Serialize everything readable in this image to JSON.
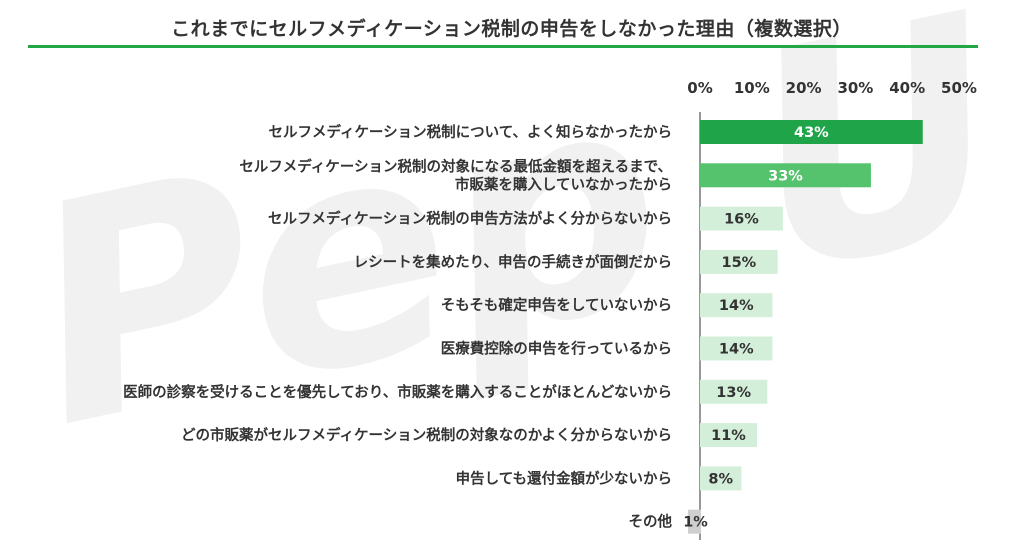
{
  "title": "これまでにセルフメディケーション税制の申告をしなかった理由（複数選択）",
  "watermark_text": "Pep Up.",
  "colors": {
    "accent": "#22a746",
    "bar_dark": "#1fa44a",
    "bar_mid": "#55c26e",
    "bar_light": "#d4efd9",
    "bar_other": "#cfcfcf",
    "label_on_dark": "#ffffff",
    "label_on_light": "#333333"
  },
  "chart_data": {
    "type": "bar",
    "orientation": "horizontal",
    "title": "これまでにセルフメディケーション税制の申告をしなかった理由（複数選択）",
    "xlim": [
      0,
      50
    ],
    "ticks": [
      "0%",
      "10%",
      "20%",
      "30%",
      "40%",
      "50%"
    ],
    "tick_values": [
      0,
      10,
      20,
      30,
      40,
      50
    ],
    "grid": false,
    "categories": [
      [
        "セルフメディケーション税制について、よく知らなかったから"
      ],
      [
        "セルフメディケーション税制の対象になる最低金額を超えるまで、",
        "市販薬を購入していなかったから"
      ],
      [
        "セルフメディケーション税制の申告方法がよく分からないから"
      ],
      [
        "レシートを集めたり、申告の手続きが面倒だから"
      ],
      [
        "そもそも確定申告をしていないから"
      ],
      [
        "医療費控除の申告を行っているから"
      ],
      [
        "医師の診察を受けることを優先しており、市販薬を購入することがほとんどないから"
      ],
      [
        "どの市販薬がセルフメディケーション税制の対象なのかよく分からないから"
      ],
      [
        "申告しても還付金額が少ないから"
      ],
      [
        "その他"
      ]
    ],
    "values": [
      43,
      33,
      16,
      15,
      14,
      14,
      13,
      11,
      8,
      1
    ],
    "value_labels": [
      "43%",
      "33%",
      "16%",
      "15%",
      "14%",
      "14%",
      "13%",
      "11%",
      "8%",
      "1%"
    ],
    "bar_color_keys": [
      "bar_dark",
      "bar_mid",
      "bar_light",
      "bar_light",
      "bar_light",
      "bar_light",
      "bar_light",
      "bar_light",
      "bar_light",
      "bar_other"
    ]
  }
}
